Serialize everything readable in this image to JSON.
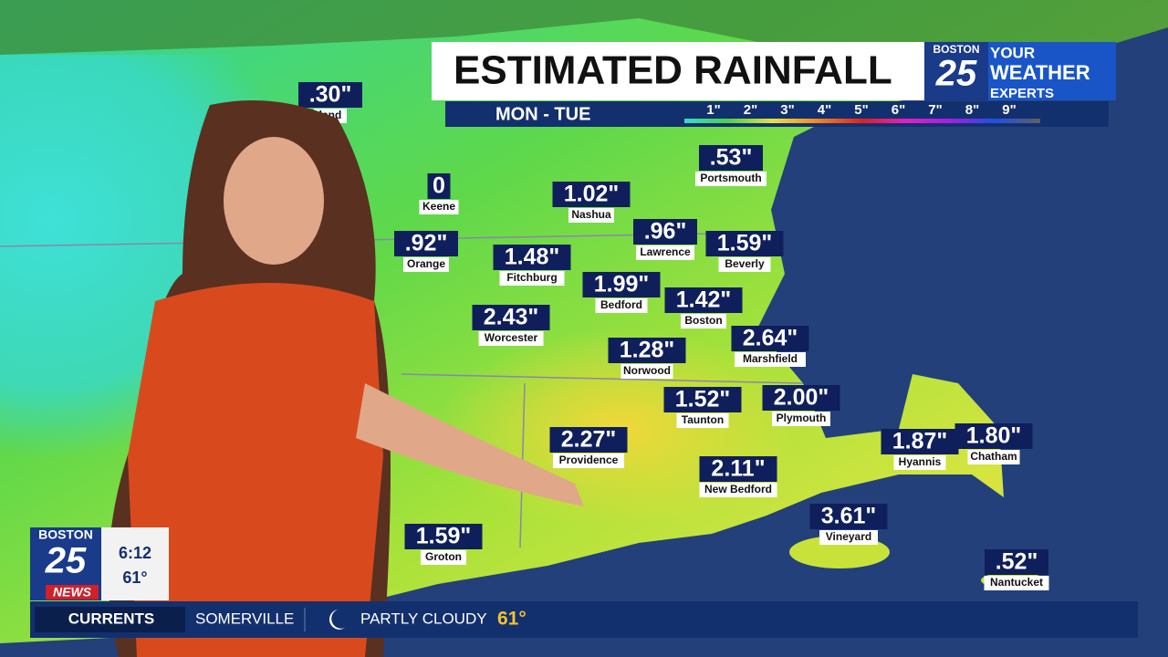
{
  "header": {
    "title": "ESTIMATED RAINFALL",
    "subtitle": "MON - TUE",
    "logo": {
      "city": "BOSTON",
      "number": "25",
      "line1": "YOUR",
      "line2": "WEATHER",
      "line3": "EXPERTS"
    },
    "scale": [
      "1\"",
      "2\"",
      "3\"",
      "4\"",
      "5\"",
      "6\"",
      "7\"",
      "8\"",
      "9\""
    ]
  },
  "stations": [
    {
      "value": ".30\"",
      "name": "land"
    },
    {
      "value": "0",
      "name": "Keene"
    },
    {
      "value": "1.02\"",
      "name": "Nashua"
    },
    {
      "value": ".53\"",
      "name": "Portsmouth"
    },
    {
      "value": ".92\"",
      "name": "Orange"
    },
    {
      "value": "1.48\"",
      "name": "Fitchburg"
    },
    {
      "value": ".96\"",
      "name": "Lawrence"
    },
    {
      "value": "1.59\"",
      "name": "Beverly"
    },
    {
      "value": "1.99\"",
      "name": "Bedford"
    },
    {
      "value": "1.42\"",
      "name": "Boston"
    },
    {
      "value": "2.43\"",
      "name": "Worcester"
    },
    {
      "value": "2.64\"",
      "name": "Marshfield"
    },
    {
      "value": "1.28\"",
      "name": "Norwood"
    },
    {
      "value": "1.52\"",
      "name": "Taunton"
    },
    {
      "value": "2.00\"",
      "name": "Plymouth"
    },
    {
      "value": "2.27\"",
      "name": "Providence"
    },
    {
      "value": "1.87\"",
      "name": "Hyannis"
    },
    {
      "value": "1.80\"",
      "name": "Chatham"
    },
    {
      "value": "2.11\"",
      "name": "New Bedford"
    },
    {
      "value": "3.61\"",
      "name": "Vineyard"
    },
    {
      "value": "1.59\"",
      "name": "Groton"
    },
    {
      "value": ".52\"",
      "name": "Nantucket"
    }
  ],
  "ticker": {
    "logo_city": "BOSTON",
    "logo_number": "25",
    "logo_news": "NEWS",
    "time": "6:12",
    "temp": "61°",
    "label": "CURRENTS",
    "location": "SOMERVILLE",
    "condition": "PARTLY CLOUDY",
    "current_temp": "61°"
  }
}
